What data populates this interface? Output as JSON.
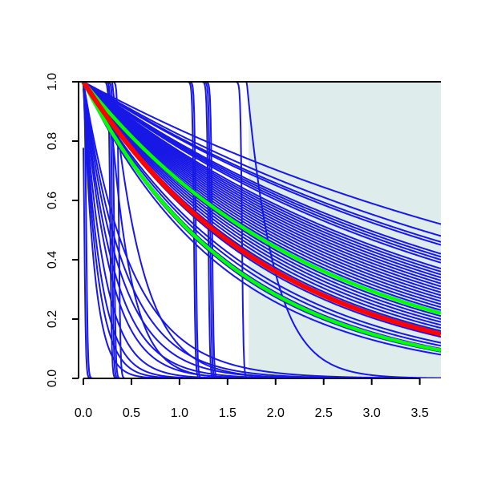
{
  "chart_data": {
    "type": "line",
    "title": "",
    "xlabel": "",
    "ylabel": "",
    "xlim": [
      -0.05,
      3.72
    ],
    "ylim": [
      0,
      1
    ],
    "x_ticks": [
      "0.0",
      "0.5",
      "1.0",
      "1.5",
      "2.0",
      "2.5",
      "3.0",
      "3.5"
    ],
    "y_ticks": [
      "0.0",
      "0.2",
      "0.4",
      "0.6",
      "0.8",
      "1.0"
    ],
    "grid": false,
    "legend": "none",
    "shaded_region": {
      "x_from": 1.72,
      "x_to": 3.72,
      "color": "#deeceb"
    },
    "colors": {
      "ensemble": "#1818e6",
      "central": "#ff0000",
      "band": "#00ff00",
      "axes": "#000000"
    },
    "series": [
      {
        "role": "central",
        "kind": "decay",
        "y_at_x_max": 0.15
      },
      {
        "role": "band",
        "kind": "decay",
        "y_at_x_max": 0.22
      },
      {
        "role": "band",
        "kind": "decay",
        "y_at_x_max": 0.095
      },
      {
        "role": "ensemble",
        "kind": "decay",
        "y_at_x_max": 0.52
      },
      {
        "role": "ensemble",
        "kind": "decay",
        "y_at_x_max": 0.48
      },
      {
        "role": "ensemble",
        "kind": "decay",
        "y_at_x_max": 0.46
      },
      {
        "role": "ensemble",
        "kind": "decay",
        "y_at_x_max": 0.45
      },
      {
        "role": "ensemble",
        "kind": "decay",
        "y_at_x_max": 0.42
      },
      {
        "role": "ensemble",
        "kind": "decay",
        "y_at_x_max": 0.41
      },
      {
        "role": "ensemble",
        "kind": "decay",
        "y_at_x_max": 0.4
      },
      {
        "role": "ensemble",
        "kind": "decay",
        "y_at_x_max": 0.39
      },
      {
        "role": "ensemble",
        "kind": "decay",
        "y_at_x_max": 0.37
      },
      {
        "role": "ensemble",
        "kind": "decay",
        "y_at_x_max": 0.36
      },
      {
        "role": "ensemble",
        "kind": "decay",
        "y_at_x_max": 0.35
      },
      {
        "role": "ensemble",
        "kind": "decay",
        "y_at_x_max": 0.34
      },
      {
        "role": "ensemble",
        "kind": "decay",
        "y_at_x_max": 0.33
      },
      {
        "role": "ensemble",
        "kind": "decay",
        "y_at_x_max": 0.32
      },
      {
        "role": "ensemble",
        "kind": "decay",
        "y_at_x_max": 0.31
      },
      {
        "role": "ensemble",
        "kind": "decay",
        "y_at_x_max": 0.3
      },
      {
        "role": "ensemble",
        "kind": "decay",
        "y_at_x_max": 0.29
      },
      {
        "role": "ensemble",
        "kind": "decay",
        "y_at_x_max": 0.28
      },
      {
        "role": "ensemble",
        "kind": "decay",
        "y_at_x_max": 0.27
      },
      {
        "role": "ensemble",
        "kind": "decay",
        "y_at_x_max": 0.26
      },
      {
        "role": "ensemble",
        "kind": "decay",
        "y_at_x_max": 0.25
      },
      {
        "role": "ensemble",
        "kind": "decay",
        "y_at_x_max": 0.24
      },
      {
        "role": "ensemble",
        "kind": "decay",
        "y_at_x_max": 0.23
      },
      {
        "role": "ensemble",
        "kind": "decay",
        "y_at_x_max": 0.21
      },
      {
        "role": "ensemble",
        "kind": "decay",
        "y_at_x_max": 0.2
      },
      {
        "role": "ensemble",
        "kind": "decay",
        "y_at_x_max": 0.19
      },
      {
        "role": "ensemble",
        "kind": "decay",
        "y_at_x_max": 0.18
      },
      {
        "role": "ensemble",
        "kind": "decay",
        "y_at_x_max": 0.17
      },
      {
        "role": "ensemble",
        "kind": "decay",
        "y_at_x_max": 0.16
      },
      {
        "role": "ensemble",
        "kind": "decay",
        "y_at_x_max": 0.14
      },
      {
        "role": "ensemble",
        "kind": "decay",
        "y_at_x_max": 0.12
      },
      {
        "role": "ensemble",
        "kind": "decay",
        "y_at_x_max": 0.11
      },
      {
        "role": "ensemble",
        "kind": "decay",
        "y_at_x_max": 0.1
      },
      {
        "role": "ensemble",
        "kind": "decay",
        "y_at_x_max": 0.09
      },
      {
        "role": "ensemble",
        "kind": "decay",
        "y_at_x_max": 0.08
      },
      {
        "role": "ensemble",
        "kind": "step",
        "x_drop": 0.01
      },
      {
        "role": "ensemble",
        "kind": "step",
        "x_drop": 0.03
      },
      {
        "role": "ensemble",
        "kind": "step",
        "x_drop": 0.28
      },
      {
        "role": "ensemble",
        "kind": "step",
        "x_drop": 0.3
      },
      {
        "role": "ensemble",
        "kind": "step",
        "x_drop": 0.32
      },
      {
        "role": "ensemble",
        "kind": "step",
        "x_drop": 0.37
      },
      {
        "role": "ensemble",
        "kind": "step",
        "x_drop": 1.15
      },
      {
        "role": "ensemble",
        "kind": "step",
        "x_drop": 1.17
      },
      {
        "role": "ensemble",
        "kind": "step",
        "x_drop": 1.3
      },
      {
        "role": "ensemble",
        "kind": "step",
        "x_drop": 1.32
      },
      {
        "role": "ensemble",
        "kind": "step",
        "x_drop": 1.34
      },
      {
        "role": "ensemble",
        "kind": "step",
        "x_drop": 1.65
      },
      {
        "role": "ensemble",
        "kind": "fast",
        "half_life": 0.08
      },
      {
        "role": "ensemble",
        "kind": "fast",
        "half_life": 0.1
      },
      {
        "role": "ensemble",
        "kind": "fast",
        "half_life": 0.12
      },
      {
        "role": "ensemble",
        "kind": "fast",
        "half_life": 0.15
      },
      {
        "role": "ensemble",
        "kind": "fast",
        "half_life": 0.19
      },
      {
        "role": "ensemble",
        "kind": "fast",
        "half_life": 0.22
      },
      {
        "role": "ensemble",
        "kind": "fast",
        "half_life": 0.26
      },
      {
        "role": "ensemble",
        "kind": "fast",
        "half_life": 0.3
      },
      {
        "role": "ensemble",
        "kind": "fast",
        "half_life": 0.35
      },
      {
        "role": "ensemble",
        "kind": "delayed",
        "x_start": 0.26,
        "half_life": 0.15
      },
      {
        "role": "ensemble",
        "kind": "delayed",
        "x_start": 0.3,
        "half_life": 0.22
      },
      {
        "role": "ensemble",
        "kind": "delayed",
        "x_start": 1.7,
        "half_life": 0.2
      }
    ]
  }
}
